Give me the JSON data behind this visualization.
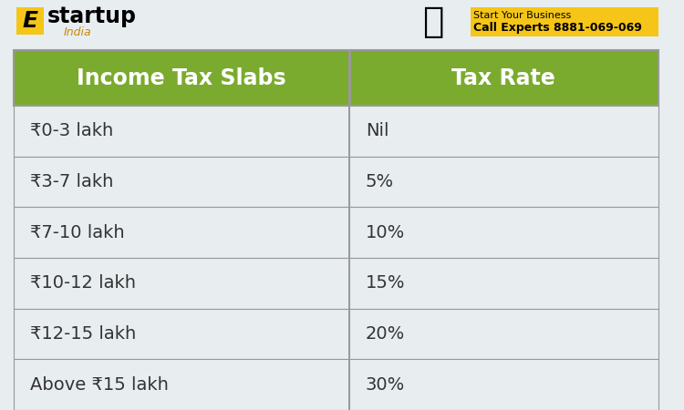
{
  "header_bg_color": "#7aab2e",
  "header_text_color": "#ffffff",
  "row_bg_color": "#e8edf0",
  "border_color": "#999999",
  "cell_text_color": "#333333",
  "header_col1": "Income Tax Slabs",
  "header_col2": "Tax Rate",
  "rows": [
    [
      "₹0-3 lakh",
      "Nil"
    ],
    [
      "₹3-7 lakh",
      "5%"
    ],
    [
      "₹7-10 lakh",
      "10%"
    ],
    [
      "₹10-12 lakh",
      "15%"
    ],
    [
      "₹12-15 lakh",
      "20%"
    ],
    [
      "Above ₹15 lakh",
      "30%"
    ]
  ],
  "top_bg_color": "#e8edf0",
  "logo_text_e": "E",
  "logo_text_startup": "startup",
  "logo_text_india": "India",
  "logo_e_bg": "#f5c518",
  "banner_bg": "#f5c518",
  "banner_text1": "Start Your Business",
  "banner_text2": "Call Experts 8881-069-069",
  "fig_width": 7.5,
  "fig_height": 4.5,
  "header_font_size": 17,
  "row_font_size": 14,
  "col1_split": 0.52
}
